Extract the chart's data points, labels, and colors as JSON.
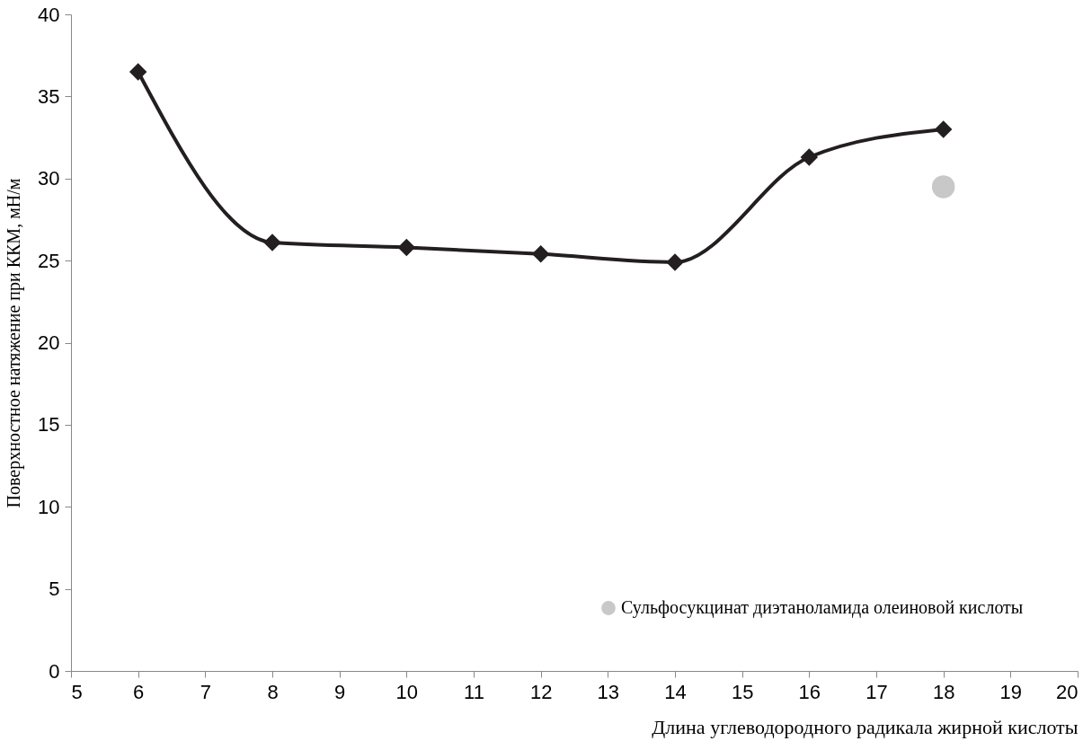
{
  "chart_data": {
    "type": "line",
    "xlabel": "Длина углеводородного радикала жирной кислоты",
    "ylabel": "Поверхностное натяжение при ККМ, мН/м",
    "xlim": [
      5,
      20
    ],
    "xticks": [
      5,
      6,
      7,
      8,
      9,
      10,
      11,
      12,
      13,
      14,
      15,
      16,
      17,
      18,
      19,
      20
    ],
    "ylim": [
      0,
      40
    ],
    "yticks": [
      0,
      5,
      10,
      15,
      20,
      25,
      30,
      35,
      40
    ],
    "grid": false,
    "legend": "bottom right",
    "series": [
      {
        "type": "line",
        "color": "#231f20",
        "marker": "diamond",
        "x": [
          6,
          8,
          10,
          12,
          14,
          16,
          18
        ],
        "values": [
          36.5,
          26.1,
          25.8,
          25.4,
          24.9,
          31.3,
          33.0
        ]
      },
      {
        "type": "scatter",
        "name": "Сульфосукцинат диэтаноламида олеиновой кислоты",
        "color": "#c8c8c8",
        "marker": "circle",
        "x": [
          18
        ],
        "values": [
          29.5
        ]
      }
    ]
  }
}
